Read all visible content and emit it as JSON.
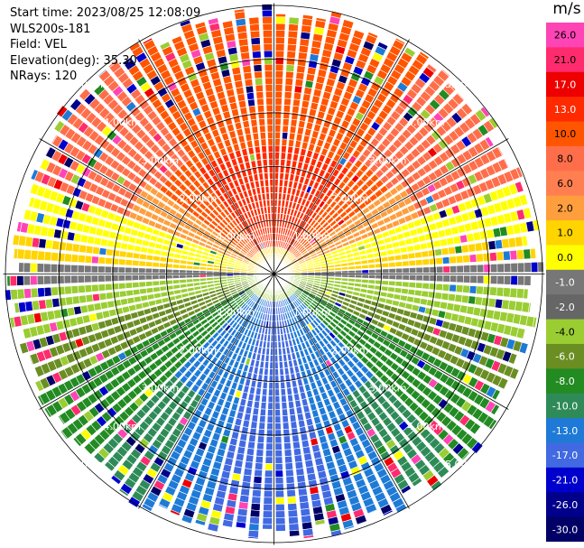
{
  "header": {
    "start_time": "Start time: 2023/08/25 12:08:09",
    "instrument": "WLS200s-181",
    "field": "Field: VEL",
    "elevation": "Elevation(deg): 35.30",
    "nrays": "NRays: 120"
  },
  "colorbar": {
    "unit": "m/s",
    "ticks": [
      "26.0",
      "21.0",
      "17.0",
      "13.0",
      "10.0",
      "8.0",
      "6.0",
      "2.0",
      "1.0",
      "0.0",
      "-1.0",
      "-2.0",
      "-4.0",
      "-6.0",
      "-8.0",
      "-10.0",
      "-13.0",
      "-17.0",
      "-21.0",
      "-26.0",
      "-30.0"
    ],
    "colors": [
      "#ff44b5",
      "#ff2b6e",
      "#ee0000",
      "#ff2a00",
      "#ff5500",
      "#ff6e4a",
      "#ff7f50",
      "#ff9e3d",
      "#ffd400",
      "#ffff00",
      "#777777",
      "#666666",
      "#9acd32",
      "#6b8e23",
      "#228b22",
      "#2e8b57",
      "#1e7ad6",
      "#4169e1",
      "#0000cd",
      "#00008b",
      "#000066"
    ]
  },
  "chart_data": {
    "type": "ppi",
    "field": "VEL",
    "units": "m/s",
    "nrays": 120,
    "range_rings_km": [
      1.0,
      2.0,
      3.0,
      4.0,
      5.0
    ],
    "ring_labels": [
      "1.00km",
      "2.00km",
      "3.00km",
      "4.00km",
      "5.00km"
    ],
    "velocity_by_azimuth": {
      "north_sector": 13.0,
      "east_west": 0.0,
      "south_sector": -10.0
    },
    "vmin": -30.0,
    "vmax": 26.0
  }
}
